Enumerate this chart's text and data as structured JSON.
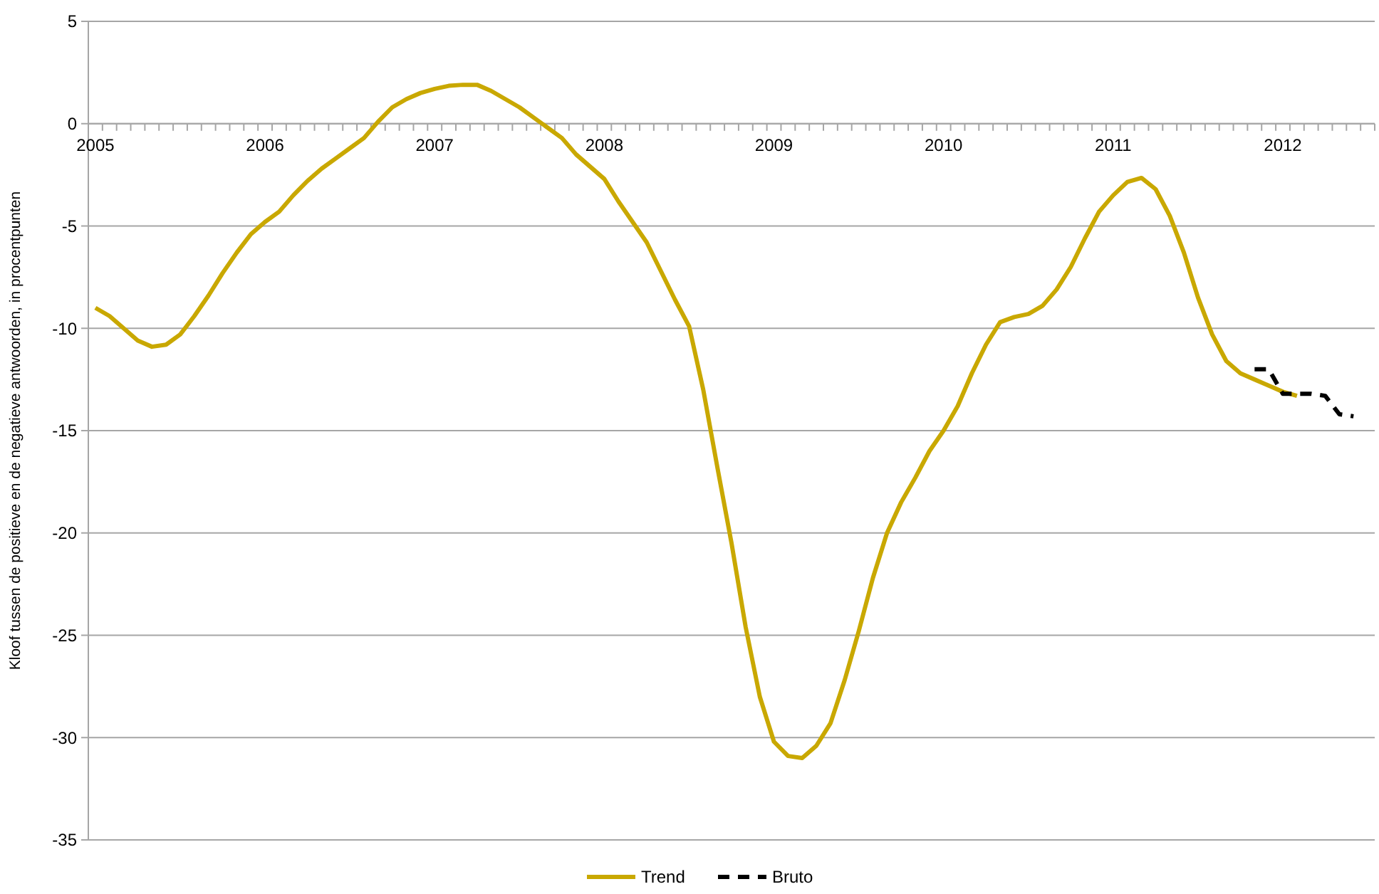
{
  "chart_data": {
    "type": "line",
    "ylabel": "Kloof tussen de positieve en de negatieve antwoorden, in procentpunten",
    "categories": [
      "2005",
      null,
      null,
      null,
      null,
      null,
      null,
      null,
      null,
      null,
      null,
      null,
      "2006",
      null,
      null,
      null,
      null,
      null,
      null,
      null,
      null,
      null,
      null,
      null,
      "2007",
      null,
      null,
      null,
      null,
      null,
      null,
      null,
      null,
      null,
      null,
      null,
      "2008",
      null,
      null,
      null,
      null,
      null,
      null,
      null,
      null,
      null,
      null,
      null,
      "2009",
      null,
      null,
      null,
      null,
      null,
      null,
      null,
      null,
      null,
      null,
      null,
      "2010",
      null,
      null,
      null,
      null,
      null,
      null,
      null,
      null,
      null,
      null,
      null,
      "2011",
      null,
      null,
      null,
      null,
      null,
      null,
      null,
      null,
      null,
      null,
      null,
      "2012",
      null,
      null,
      null,
      null,
      null,
      null
    ],
    "series": [
      {
        "name": "Trend",
        "color": "#c9a800",
        "line_style": "solid",
        "values": [
          -9.0,
          -9.4,
          -10.0,
          -10.6,
          -10.9,
          -10.8,
          -10.3,
          -9.4,
          -8.4,
          -7.3,
          -6.3,
          -5.4,
          -4.8,
          -4.3,
          -3.5,
          -2.8,
          -2.2,
          -1.7,
          -1.2,
          -0.7,
          0.1,
          0.8,
          1.2,
          1.5,
          1.7,
          1.85,
          1.9,
          1.9,
          1.6,
          1.2,
          0.8,
          0.3,
          -0.2,
          -0.7,
          -1.5,
          -2.1,
          -2.7,
          -3.8,
          -4.8,
          -5.8,
          -7.2,
          -8.6,
          -9.9,
          -13.0,
          -16.8,
          -20.5,
          -24.6,
          -28.0,
          -30.2,
          -30.9,
          -31.0,
          -30.4,
          -29.3,
          -27.2,
          -24.8,
          -22.2,
          -20.0,
          -18.5,
          -17.3,
          -16.0,
          -15.0,
          -13.8,
          -12.2,
          -10.8,
          -9.7,
          -9.45,
          -9.3,
          -8.9,
          -8.1,
          -7.0,
          -5.6,
          -4.3,
          -3.5,
          -2.85,
          -2.65,
          -3.2,
          -4.5,
          -6.3,
          -8.5,
          -10.3,
          -11.6,
          -12.2,
          -12.5,
          -12.8,
          -13.1,
          -13.3,
          null,
          null,
          null,
          null,
          null
        ]
      },
      {
        "name": "Bruto",
        "color": "#000000",
        "line_style": "dashed",
        "values": [
          null,
          null,
          null,
          null,
          null,
          null,
          null,
          null,
          null,
          null,
          null,
          null,
          null,
          null,
          null,
          null,
          null,
          null,
          null,
          null,
          null,
          null,
          null,
          null,
          null,
          null,
          null,
          null,
          null,
          null,
          null,
          null,
          null,
          null,
          null,
          null,
          null,
          null,
          null,
          null,
          null,
          null,
          null,
          null,
          null,
          null,
          null,
          null,
          null,
          null,
          null,
          null,
          null,
          null,
          null,
          null,
          null,
          null,
          null,
          null,
          null,
          null,
          null,
          null,
          null,
          null,
          null,
          null,
          null,
          null,
          null,
          null,
          null,
          null,
          null,
          null,
          null,
          null,
          null,
          null,
          null,
          null,
          -12.0,
          -12.0,
          -13.2,
          -13.2,
          -13.2,
          -13.3,
          -14.2,
          -14.3,
          null
        ]
      }
    ],
    "ylim": [
      -35,
      5
    ],
    "yticks": [
      -35,
      -30,
      -25,
      -20,
      -15,
      -10,
      -5,
      0,
      5
    ],
    "grid": "y",
    "legend": "bottom"
  }
}
